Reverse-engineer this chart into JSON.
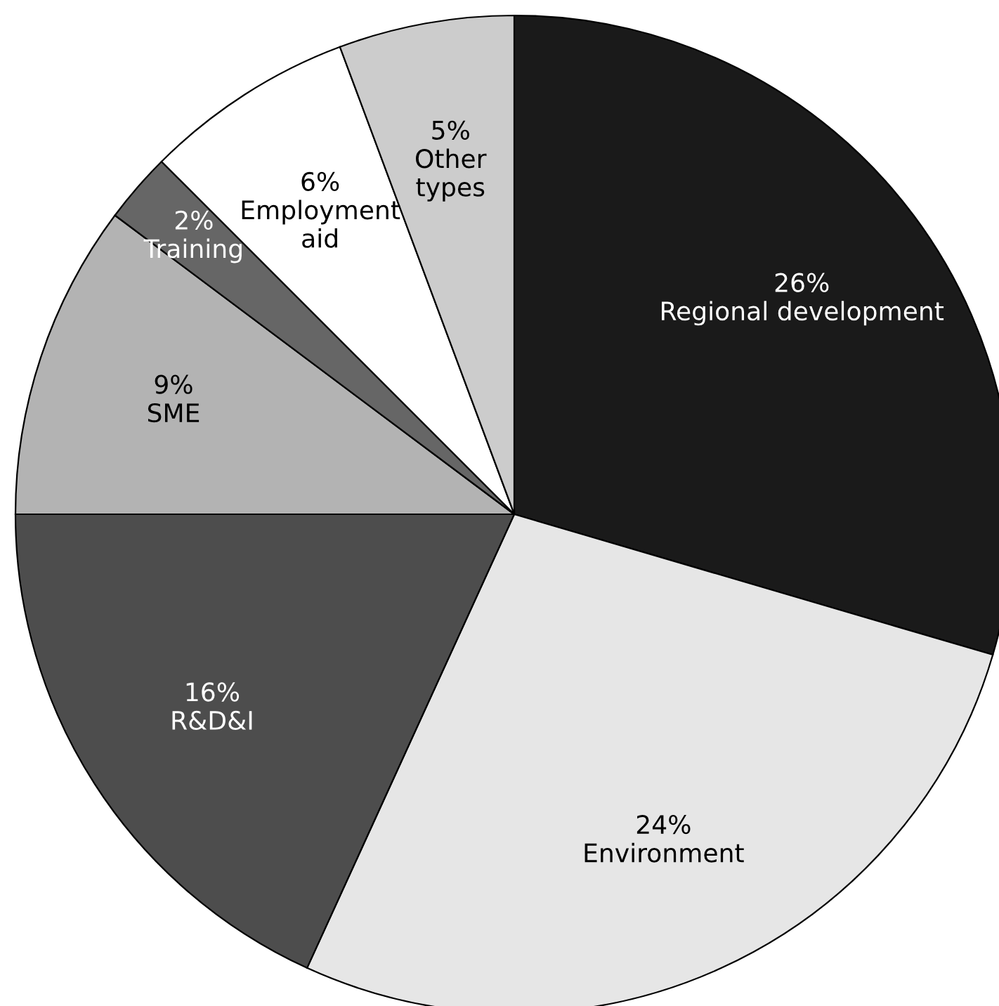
{
  "chart_data": {
    "type": "pie",
    "categories": [
      "Regional development",
      "Environment",
      "R&D&I",
      "SME",
      "Training",
      "Employment aid",
      "Other types"
    ],
    "values": [
      26,
      24,
      16,
      9,
      2,
      6,
      5
    ],
    "value_labels": [
      "26%",
      "24%",
      "16%",
      "9%",
      "2%",
      "6%",
      "5%"
    ],
    "colors": [
      "#1a1a1a",
      "#e6e6e6",
      "#4d4d4d",
      "#b3b3b3",
      "#666666",
      "#ffffff",
      "#cccccc"
    ]
  }
}
